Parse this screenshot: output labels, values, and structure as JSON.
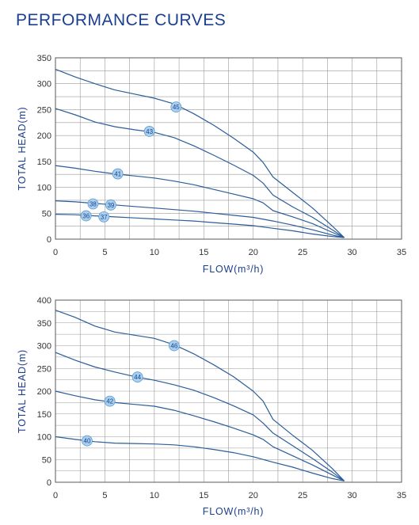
{
  "page": {
    "title": "PERFORMANCE CURVES"
  },
  "colors": {
    "curve": "#2a5d9a",
    "grid": "#9a9a9a",
    "frame": "#5a5a5a",
    "marker_fill": "#a9d0ee",
    "marker_stroke": "#5d9bd0",
    "title": "#1b3f8f"
  },
  "chart_data": [
    {
      "type": "line",
      "xlabel": "FLOW(m³/h)",
      "ylabel": "TOTAL HEAD(m)",
      "xlim": [
        0,
        35
      ],
      "ylim": [
        0,
        350
      ],
      "xticks": [
        "0",
        "5",
        "10",
        "15",
        "20",
        "25",
        "30",
        "35"
      ],
      "yticks": [
        "0",
        "50",
        "100",
        "150",
        "200",
        "250",
        "300",
        "350"
      ],
      "grid": true,
      "series": [
        {
          "name": "45",
          "marker_x": 12.2,
          "marker_y": 255,
          "points": [
            [
              0,
              328
            ],
            [
              2,
              313
            ],
            [
              4,
              300
            ],
            [
              6,
              288
            ],
            [
              8,
              280
            ],
            [
              10,
              272
            ],
            [
              12,
              261
            ],
            [
              14,
              242
            ],
            [
              16,
              220
            ],
            [
              18,
              195
            ],
            [
              20,
              168
            ],
            [
              21,
              148
            ],
            [
              22,
              120
            ],
            [
              24,
              90
            ],
            [
              26,
              60
            ],
            [
              28,
              25
            ],
            [
              29.2,
              3
            ]
          ]
        },
        {
          "name": "43",
          "marker_x": 9.5,
          "marker_y": 208,
          "points": [
            [
              0,
              252
            ],
            [
              2,
              240
            ],
            [
              4,
              226
            ],
            [
              6,
              217
            ],
            [
              8,
              211
            ],
            [
              10,
              206
            ],
            [
              12,
              196
            ],
            [
              14,
              180
            ],
            [
              16,
              162
            ],
            [
              18,
              143
            ],
            [
              20,
              123
            ],
            [
              21,
              108
            ],
            [
              22,
              85
            ],
            [
              24,
              62
            ],
            [
              26,
              42
            ],
            [
              28,
              18
            ],
            [
              29.2,
              3
            ]
          ]
        },
        {
          "name": "41",
          "marker_x": 6.3,
          "marker_y": 126,
          "points": [
            [
              0,
              142
            ],
            [
              2,
              137
            ],
            [
              4,
              131
            ],
            [
              6,
              126
            ],
            [
              8,
              122
            ],
            [
              10,
              118
            ],
            [
              12,
              112
            ],
            [
              14,
              105
            ],
            [
              16,
              96
            ],
            [
              18,
              87
            ],
            [
              20,
              78
            ],
            [
              21,
              70
            ],
            [
              22,
              55
            ],
            [
              24,
              43
            ],
            [
              26,
              30
            ],
            [
              28,
              13
            ],
            [
              29.2,
              3
            ]
          ]
        },
        {
          "name": "39",
          "marker_x": 5.6,
          "marker_y": 66,
          "points": [
            [
              0,
              74
            ],
            [
              2,
              72
            ],
            [
              4,
              69
            ],
            [
              6,
              66
            ],
            [
              8,
              63
            ],
            [
              10,
              60
            ],
            [
              12,
              57
            ],
            [
              14,
              54
            ],
            [
              16,
              50
            ],
            [
              18,
              46
            ],
            [
              20,
              42
            ],
            [
              22,
              35
            ],
            [
              24,
              27
            ],
            [
              26,
              18
            ],
            [
              28,
              8
            ],
            [
              29.2,
              3
            ]
          ]
        },
        {
          "name": "38",
          "marker_x": 3.8,
          "marker_y": 68,
          "points": [
            [
              0,
              74
            ],
            [
              2,
              72
            ],
            [
              4,
              69
            ],
            [
              6,
              66
            ],
            [
              8,
              63
            ],
            [
              10,
              60
            ],
            [
              12,
              57
            ],
            [
              14,
              54
            ],
            [
              16,
              50
            ],
            [
              18,
              46
            ],
            [
              20,
              42
            ],
            [
              22,
              35
            ],
            [
              24,
              27
            ],
            [
              26,
              18
            ],
            [
              28,
              8
            ],
            [
              29.2,
              3
            ]
          ]
        },
        {
          "name": "37",
          "marker_x": 4.9,
          "marker_y": 43,
          "points": [
            [
              0,
              48
            ],
            [
              2,
              47
            ],
            [
              4,
              45
            ],
            [
              6,
              43
            ],
            [
              8,
              41
            ],
            [
              10,
              39
            ],
            [
              12,
              37
            ],
            [
              14,
              35
            ],
            [
              16,
              32
            ],
            [
              18,
              29
            ],
            [
              20,
              26
            ],
            [
              22,
              21
            ],
            [
              24,
              16
            ],
            [
              26,
              10
            ],
            [
              28,
              5
            ],
            [
              29.2,
              3
            ]
          ]
        },
        {
          "name": "36",
          "marker_x": 3.1,
          "marker_y": 45,
          "points": [
            [
              0,
              48
            ],
            [
              2,
              47
            ],
            [
              4,
              45
            ],
            [
              6,
              43
            ],
            [
              8,
              41
            ],
            [
              10,
              39
            ],
            [
              12,
              37
            ],
            [
              14,
              35
            ],
            [
              16,
              32
            ],
            [
              18,
              29
            ],
            [
              20,
              26
            ],
            [
              22,
              21
            ],
            [
              24,
              16
            ],
            [
              26,
              10
            ],
            [
              28,
              5
            ],
            [
              29.2,
              3
            ]
          ]
        }
      ]
    },
    {
      "type": "line",
      "xlabel": "FLOW(m³/h)",
      "ylabel": "TOTAL HEAD(m)",
      "xlim": [
        0,
        35
      ],
      "ylim": [
        0,
        400
      ],
      "xticks": [
        "0",
        "5",
        "10",
        "15",
        "20",
        "25",
        "30",
        "35"
      ],
      "yticks": [
        "0",
        "50",
        "100",
        "150",
        "200",
        "250",
        "300",
        "350",
        "400"
      ],
      "grid": true,
      "series": [
        {
          "name": "46",
          "marker_x": 12.0,
          "marker_y": 300,
          "points": [
            [
              0,
              378
            ],
            [
              2,
              362
            ],
            [
              4,
              343
            ],
            [
              6,
              330
            ],
            [
              8,
              323
            ],
            [
              10,
              316
            ],
            [
              12,
              302
            ],
            [
              14,
              282
            ],
            [
              16,
              258
            ],
            [
              18,
              232
            ],
            [
              20,
              200
            ],
            [
              21,
              178
            ],
            [
              22,
              138
            ],
            [
              24,
              103
            ],
            [
              26,
              70
            ],
            [
              28,
              30
            ],
            [
              29.2,
              3
            ]
          ]
        },
        {
          "name": "44",
          "marker_x": 8.3,
          "marker_y": 231,
          "points": [
            [
              0,
              285
            ],
            [
              2,
              268
            ],
            [
              4,
              253
            ],
            [
              6,
              242
            ],
            [
              8,
              232
            ],
            [
              10,
              224
            ],
            [
              12,
              214
            ],
            [
              14,
              202
            ],
            [
              16,
              186
            ],
            [
              18,
              168
            ],
            [
              20,
              148
            ],
            [
              21,
              130
            ],
            [
              22,
              108
            ],
            [
              24,
              80
            ],
            [
              26,
              52
            ],
            [
              28,
              22
            ],
            [
              29.2,
              3
            ]
          ]
        },
        {
          "name": "42",
          "marker_x": 5.5,
          "marker_y": 178,
          "points": [
            [
              0,
              200
            ],
            [
              2,
              190
            ],
            [
              4,
              181
            ],
            [
              6,
              175
            ],
            [
              8,
              171
            ],
            [
              10,
              167
            ],
            [
              12,
              158
            ],
            [
              14,
              146
            ],
            [
              16,
              133
            ],
            [
              18,
              119
            ],
            [
              20,
              104
            ],
            [
              21,
              94
            ],
            [
              22,
              78
            ],
            [
              24,
              58
            ],
            [
              26,
              38
            ],
            [
              28,
              16
            ],
            [
              29.2,
              3
            ]
          ]
        },
        {
          "name": "40",
          "marker_x": 3.2,
          "marker_y": 91,
          "points": [
            [
              0,
              100
            ],
            [
              2,
              94
            ],
            [
              4,
              89
            ],
            [
              6,
              86
            ],
            [
              8,
              85
            ],
            [
              10,
              84
            ],
            [
              12,
              82
            ],
            [
              14,
              78
            ],
            [
              16,
              72
            ],
            [
              18,
              65
            ],
            [
              20,
              56
            ],
            [
              22,
              44
            ],
            [
              24,
              33
            ],
            [
              26,
              20
            ],
            [
              28,
              8
            ],
            [
              29.2,
              3
            ]
          ]
        }
      ]
    }
  ]
}
